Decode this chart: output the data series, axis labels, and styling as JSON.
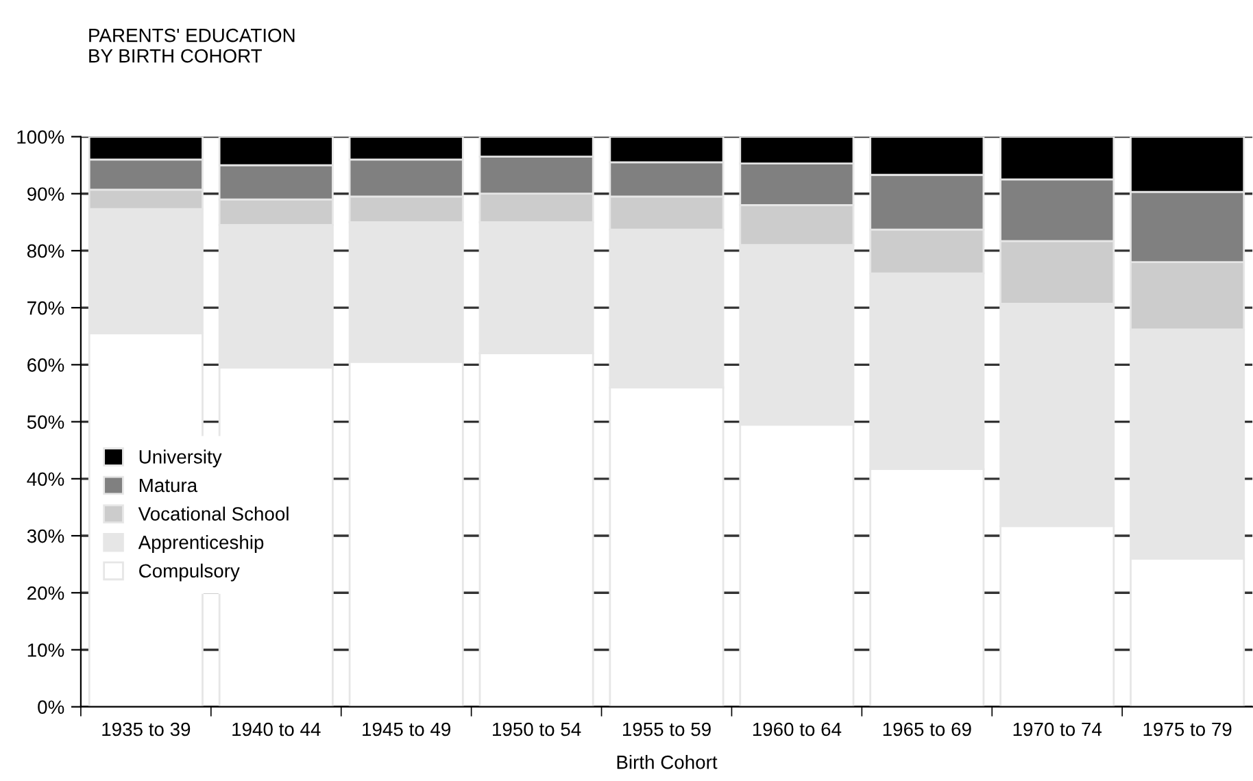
{
  "chart_data": {
    "type": "bar",
    "title": "PARENTS' EDUCATION\nBY BIRTH COHORT",
    "xlabel": "Birth Cohort",
    "categories": [
      "1935 to 39",
      "1940 to 44",
      "1945 to 49",
      "1950 to 54",
      "1955 to 59",
      "1960 to 64",
      "1965 to 69",
      "1970 to 74",
      "1975 to 79"
    ],
    "stacked": true,
    "series": [
      {
        "name": "Compulsory",
        "color": "#ffffff",
        "values": [
          65.5,
          59.5,
          60.5,
          62.0,
          56.0,
          49.5,
          41.7,
          31.7,
          26.0
        ]
      },
      {
        "name": "Apprenticeship",
        "color": "#e6e6e6",
        "values": [
          21.8,
          25.0,
          24.5,
          23.0,
          27.7,
          31.5,
          34.3,
          39.0,
          40.2
        ]
      },
      {
        "name": "Vocational School",
        "color": "#cccccc",
        "values": [
          3.4,
          4.5,
          4.5,
          5.0,
          5.8,
          7.0,
          7.7,
          11.0,
          11.8
        ]
      },
      {
        "name": "Matura",
        "color": "#808080",
        "values": [
          5.3,
          6.0,
          6.5,
          6.5,
          6.0,
          7.3,
          9.6,
          10.8,
          12.3
        ]
      },
      {
        "name": "University",
        "color": "#000000",
        "values": [
          4.0,
          5.0,
          4.0,
          3.5,
          4.5,
          4.7,
          6.7,
          7.5,
          9.7
        ]
      }
    ],
    "ylim": [
      0,
      100
    ],
    "yticks": [
      {
        "value": 0,
        "label": "0%"
      },
      {
        "value": 10,
        "label": "10%"
      },
      {
        "value": 20,
        "label": "20%"
      },
      {
        "value": 30,
        "label": "30%"
      },
      {
        "value": 40,
        "label": "40%"
      },
      {
        "value": 50,
        "label": "50%"
      },
      {
        "value": 60,
        "label": "60%"
      },
      {
        "value": 70,
        "label": "70%"
      },
      {
        "value": 80,
        "label": "80%"
      },
      {
        "value": 90,
        "label": "90%"
      },
      {
        "value": 100,
        "label": "100%"
      }
    ],
    "grid": "y",
    "legend": "bottom left"
  }
}
